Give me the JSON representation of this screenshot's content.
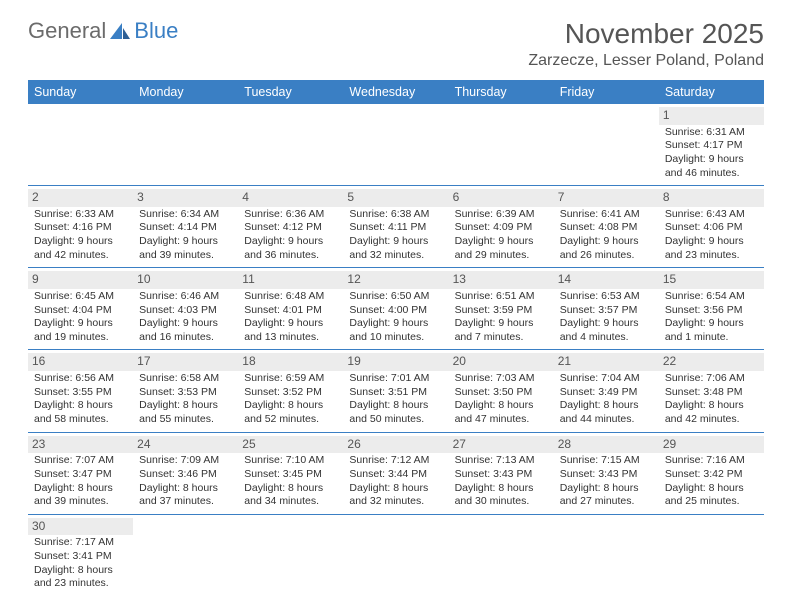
{
  "brand": {
    "part1": "General",
    "part2": "Blue"
  },
  "title": "November 2025",
  "location": "Zarzecze, Lesser Poland, Poland",
  "colors": {
    "header_bg": "#3a7fc4",
    "header_text": "#ffffff",
    "daynum_bg": "#ececec",
    "row_divider": "#3a7fc4",
    "text": "#333333",
    "title_text": "#555555"
  },
  "weekdays": [
    "Sunday",
    "Monday",
    "Tuesday",
    "Wednesday",
    "Thursday",
    "Friday",
    "Saturday"
  ],
  "weeks": [
    [
      null,
      null,
      null,
      null,
      null,
      null,
      {
        "n": "1",
        "sr": "Sunrise: 6:31 AM",
        "ss": "Sunset: 4:17 PM",
        "dl1": "Daylight: 9 hours",
        "dl2": "and 46 minutes."
      }
    ],
    [
      {
        "n": "2",
        "sr": "Sunrise: 6:33 AM",
        "ss": "Sunset: 4:16 PM",
        "dl1": "Daylight: 9 hours",
        "dl2": "and 42 minutes."
      },
      {
        "n": "3",
        "sr": "Sunrise: 6:34 AM",
        "ss": "Sunset: 4:14 PM",
        "dl1": "Daylight: 9 hours",
        "dl2": "and 39 minutes."
      },
      {
        "n": "4",
        "sr": "Sunrise: 6:36 AM",
        "ss": "Sunset: 4:12 PM",
        "dl1": "Daylight: 9 hours",
        "dl2": "and 36 minutes."
      },
      {
        "n": "5",
        "sr": "Sunrise: 6:38 AM",
        "ss": "Sunset: 4:11 PM",
        "dl1": "Daylight: 9 hours",
        "dl2": "and 32 minutes."
      },
      {
        "n": "6",
        "sr": "Sunrise: 6:39 AM",
        "ss": "Sunset: 4:09 PM",
        "dl1": "Daylight: 9 hours",
        "dl2": "and 29 minutes."
      },
      {
        "n": "7",
        "sr": "Sunrise: 6:41 AM",
        "ss": "Sunset: 4:08 PM",
        "dl1": "Daylight: 9 hours",
        "dl2": "and 26 minutes."
      },
      {
        "n": "8",
        "sr": "Sunrise: 6:43 AM",
        "ss": "Sunset: 4:06 PM",
        "dl1": "Daylight: 9 hours",
        "dl2": "and 23 minutes."
      }
    ],
    [
      {
        "n": "9",
        "sr": "Sunrise: 6:45 AM",
        "ss": "Sunset: 4:04 PM",
        "dl1": "Daylight: 9 hours",
        "dl2": "and 19 minutes."
      },
      {
        "n": "10",
        "sr": "Sunrise: 6:46 AM",
        "ss": "Sunset: 4:03 PM",
        "dl1": "Daylight: 9 hours",
        "dl2": "and 16 minutes."
      },
      {
        "n": "11",
        "sr": "Sunrise: 6:48 AM",
        "ss": "Sunset: 4:01 PM",
        "dl1": "Daylight: 9 hours",
        "dl2": "and 13 minutes."
      },
      {
        "n": "12",
        "sr": "Sunrise: 6:50 AM",
        "ss": "Sunset: 4:00 PM",
        "dl1": "Daylight: 9 hours",
        "dl2": "and 10 minutes."
      },
      {
        "n": "13",
        "sr": "Sunrise: 6:51 AM",
        "ss": "Sunset: 3:59 PM",
        "dl1": "Daylight: 9 hours",
        "dl2": "and 7 minutes."
      },
      {
        "n": "14",
        "sr": "Sunrise: 6:53 AM",
        "ss": "Sunset: 3:57 PM",
        "dl1": "Daylight: 9 hours",
        "dl2": "and 4 minutes."
      },
      {
        "n": "15",
        "sr": "Sunrise: 6:54 AM",
        "ss": "Sunset: 3:56 PM",
        "dl1": "Daylight: 9 hours",
        "dl2": "and 1 minute."
      }
    ],
    [
      {
        "n": "16",
        "sr": "Sunrise: 6:56 AM",
        "ss": "Sunset: 3:55 PM",
        "dl1": "Daylight: 8 hours",
        "dl2": "and 58 minutes."
      },
      {
        "n": "17",
        "sr": "Sunrise: 6:58 AM",
        "ss": "Sunset: 3:53 PM",
        "dl1": "Daylight: 8 hours",
        "dl2": "and 55 minutes."
      },
      {
        "n": "18",
        "sr": "Sunrise: 6:59 AM",
        "ss": "Sunset: 3:52 PM",
        "dl1": "Daylight: 8 hours",
        "dl2": "and 52 minutes."
      },
      {
        "n": "19",
        "sr": "Sunrise: 7:01 AM",
        "ss": "Sunset: 3:51 PM",
        "dl1": "Daylight: 8 hours",
        "dl2": "and 50 minutes."
      },
      {
        "n": "20",
        "sr": "Sunrise: 7:03 AM",
        "ss": "Sunset: 3:50 PM",
        "dl1": "Daylight: 8 hours",
        "dl2": "and 47 minutes."
      },
      {
        "n": "21",
        "sr": "Sunrise: 7:04 AM",
        "ss": "Sunset: 3:49 PM",
        "dl1": "Daylight: 8 hours",
        "dl2": "and 44 minutes."
      },
      {
        "n": "22",
        "sr": "Sunrise: 7:06 AM",
        "ss": "Sunset: 3:48 PM",
        "dl1": "Daylight: 8 hours",
        "dl2": "and 42 minutes."
      }
    ],
    [
      {
        "n": "23",
        "sr": "Sunrise: 7:07 AM",
        "ss": "Sunset: 3:47 PM",
        "dl1": "Daylight: 8 hours",
        "dl2": "and 39 minutes."
      },
      {
        "n": "24",
        "sr": "Sunrise: 7:09 AM",
        "ss": "Sunset: 3:46 PM",
        "dl1": "Daylight: 8 hours",
        "dl2": "and 37 minutes."
      },
      {
        "n": "25",
        "sr": "Sunrise: 7:10 AM",
        "ss": "Sunset: 3:45 PM",
        "dl1": "Daylight: 8 hours",
        "dl2": "and 34 minutes."
      },
      {
        "n": "26",
        "sr": "Sunrise: 7:12 AM",
        "ss": "Sunset: 3:44 PM",
        "dl1": "Daylight: 8 hours",
        "dl2": "and 32 minutes."
      },
      {
        "n": "27",
        "sr": "Sunrise: 7:13 AM",
        "ss": "Sunset: 3:43 PM",
        "dl1": "Daylight: 8 hours",
        "dl2": "and 30 minutes."
      },
      {
        "n": "28",
        "sr": "Sunrise: 7:15 AM",
        "ss": "Sunset: 3:43 PM",
        "dl1": "Daylight: 8 hours",
        "dl2": "and 27 minutes."
      },
      {
        "n": "29",
        "sr": "Sunrise: 7:16 AM",
        "ss": "Sunset: 3:42 PM",
        "dl1": "Daylight: 8 hours",
        "dl2": "and 25 minutes."
      }
    ],
    [
      {
        "n": "30",
        "sr": "Sunrise: 7:17 AM",
        "ss": "Sunset: 3:41 PM",
        "dl1": "Daylight: 8 hours",
        "dl2": "and 23 minutes."
      },
      null,
      null,
      null,
      null,
      null,
      null
    ]
  ]
}
